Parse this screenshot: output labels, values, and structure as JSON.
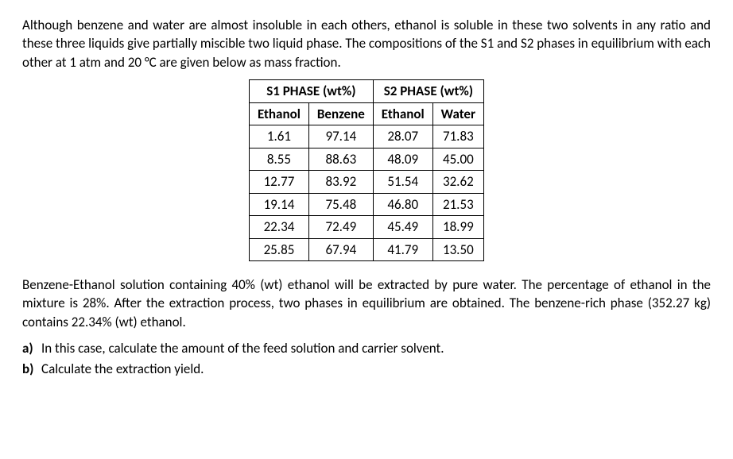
{
  "para1": "Although benzene and water are almost insoluble in each others, ethanol is soluble in these two solvents in any ratio and these three liquids give partially miscible two liquid phase. The compositions of the S1 and S2 phases in equilibrium with each other at 1 atm and 20 °C are given below as mass fraction.",
  "table": {
    "header_s1": "S1 PHASE (wt%)",
    "header_s2": "S2 PHASE (wt%)",
    "sub_headers": [
      "Ethanol",
      "Benzene",
      "Ethanol",
      "Water"
    ],
    "rows": [
      [
        "1.61",
        "97.14",
        "28.07",
        "71.83"
      ],
      [
        "8.55",
        "88.63",
        "48.09",
        "45.00"
      ],
      [
        "12.77",
        "83.92",
        "51.54",
        "32.62"
      ],
      [
        "19.14",
        "75.48",
        "46.80",
        "21.53"
      ],
      [
        "22.34",
        "72.49",
        "45.49",
        "18.99"
      ],
      [
        "25.85",
        "67.94",
        "41.79",
        "13.50"
      ]
    ]
  },
  "para2": "Benzene-Ethanol solution containing 40% (wt) ethanol will be extracted by pure water. The percentage of ethanol in the mixture is 28%. After the extraction process, two phases in equilibrium are obtained. The benzene-rich phase (352.27 kg) contains 22.34% (wt) ethanol.",
  "list": {
    "a": {
      "letter": "a)",
      "text": "In this case, calculate the amount of the feed solution and carrier solvent."
    },
    "b": {
      "letter": "b)",
      "text": "Calculate the extraction yield."
    }
  }
}
